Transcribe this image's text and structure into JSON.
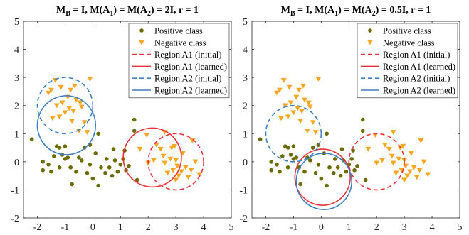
{
  "chart_data": [
    {
      "type": "scatter",
      "title": "M_B = I, M(A_1) = M(A_2) = 2I, r = 1",
      "title_parts": {
        "mb": "M",
        "mb_sub": "B",
        "eq1": " = I, M(A",
        "a1_sub": "1",
        "eq2": ") = M(A",
        "a2_sub": "2",
        "eq3": ") = 2I, r = 1"
      },
      "xlim": [
        -2.5,
        5
      ],
      "ylim": [
        -2,
        5
      ],
      "xticks": [
        "-2",
        "-1",
        "0",
        "1",
        "2",
        "3",
        "4",
        "5"
      ],
      "yticks": [
        "-2",
        "-1",
        "0",
        "1",
        "2",
        "3",
        "4",
        "5"
      ],
      "grid": false,
      "legend_position": "top-right",
      "legend": [
        "Positive class",
        "Negative class",
        "Region A1 (initial)",
        "Region A1 (learned)",
        "Region A2 (initial)",
        "Region A2 (learned)"
      ],
      "series": [
        {
          "name": "Positive class",
          "marker": "circle",
          "color": "#6b6b00",
          "points": [
            [
              -2.2,
              0.8
            ],
            [
              -1.8,
              0.0
            ],
            [
              -1.8,
              -0.3
            ],
            [
              -1.6,
              -0.1
            ],
            [
              -1.4,
              0.2
            ],
            [
              -1.3,
              0.55
            ],
            [
              -1.2,
              0.5
            ],
            [
              -1.1,
              0.25
            ],
            [
              -1.2,
              -0.2
            ],
            [
              -1.0,
              0.1
            ],
            [
              -0.9,
              0.15
            ],
            [
              -0.8,
              -0.2
            ],
            [
              -0.75,
              -0.8
            ],
            [
              -0.5,
              0.15
            ],
            [
              -0.4,
              0.05
            ],
            [
              -0.2,
              -0.4
            ],
            [
              -0.1,
              0.6
            ],
            [
              0.0,
              -0.6
            ],
            [
              0.2,
              -0.85
            ],
            [
              0.3,
              -0.2
            ],
            [
              0.5,
              0.1
            ],
            [
              0.6,
              -0.2
            ],
            [
              0.7,
              -0.5
            ],
            [
              0.75,
              0.45
            ],
            [
              0.8,
              0.05
            ],
            [
              0.9,
              -0.35
            ],
            [
              1.0,
              -0.1
            ],
            [
              1.1,
              0.1
            ],
            [
              1.15,
              0.4
            ],
            [
              1.2,
              -0.3
            ],
            [
              1.5,
              1.1
            ],
            [
              1.5,
              1.5
            ],
            [
              1.6,
              -0.65
            ],
            [
              0.2,
              1.0
            ],
            [
              -0.3,
              0.5
            ],
            [
              -1.5,
              -0.35
            ],
            [
              -0.6,
              -0.35
            ],
            [
              -0.1,
              -0.1
            ],
            [
              0.45,
              -0.4
            ],
            [
              1.3,
              -0.15
            ],
            [
              -1.0,
              0.55
            ],
            [
              0.1,
              0.3
            ]
          ]
        },
        {
          "name": "Negative class",
          "marker": "triangle-down",
          "color": "#f5a623",
          "points": [
            [
              -1.6,
              2.45
            ],
            [
              -1.5,
              2.55
            ],
            [
              -1.35,
              2.9
            ],
            [
              -1.3,
              2.0
            ],
            [
              -1.2,
              1.6
            ],
            [
              -1.1,
              2.1
            ],
            [
              -1.0,
              1.75
            ],
            [
              -0.9,
              2.3
            ],
            [
              -0.85,
              1.9
            ],
            [
              -0.75,
              1.45
            ],
            [
              -0.7,
              1.8
            ],
            [
              -0.65,
              2.7
            ],
            [
              -0.6,
              2.2
            ],
            [
              -0.5,
              1.1
            ],
            [
              -0.4,
              1.95
            ],
            [
              -0.3,
              1.4
            ],
            [
              -0.1,
              2.95
            ],
            [
              -0.2,
              1.05
            ],
            [
              -0.45,
              2.1
            ],
            [
              -1.15,
              2.65
            ],
            [
              -0.8,
              2.55
            ],
            [
              -1.45,
              1.55
            ],
            [
              1.7,
              0.45
            ],
            [
              2.0,
              -0.05
            ],
            [
              2.3,
              0.6
            ],
            [
              2.45,
              0.45
            ],
            [
              2.55,
              0.2
            ],
            [
              2.6,
              -0.05
            ],
            [
              2.7,
              -0.4
            ],
            [
              2.8,
              0.1
            ],
            [
              2.85,
              0.5
            ],
            [
              2.9,
              -0.3
            ],
            [
              2.95,
              0.55
            ],
            [
              3.0,
              0.05
            ],
            [
              3.05,
              -0.15
            ],
            [
              3.1,
              -0.5
            ],
            [
              3.2,
              -0.35
            ],
            [
              3.25,
              0.3
            ],
            [
              3.35,
              -0.2
            ],
            [
              3.45,
              -0.55
            ],
            [
              3.55,
              -0.3
            ],
            [
              3.7,
              0.0
            ],
            [
              3.85,
              -0.45
            ],
            [
              3.6,
              0.75
            ],
            [
              2.6,
              1.05
            ],
            [
              1.95,
              0.95
            ],
            [
              3.0,
              -0.65
            ],
            [
              2.2,
              0.05
            ]
          ]
        }
      ],
      "circles": [
        {
          "name": "Region A1 (initial)",
          "cx": 3.0,
          "cy": 0.0,
          "r": 1.0,
          "color": "#e8333a",
          "dashed": true
        },
        {
          "name": "Region A1 (learned)",
          "cx": 2.15,
          "cy": 0.15,
          "r": 1.05,
          "color": "#e8333a",
          "dashed": false
        },
        {
          "name": "Region A2 (initial)",
          "cx": -1.0,
          "cy": 2.0,
          "r": 1.0,
          "color": "#3e7fbf",
          "dashed": true
        },
        {
          "name": "Region A2 (learned)",
          "cx": -0.95,
          "cy": 1.3,
          "r": 1.05,
          "color": "#3e7fbf",
          "dashed": false
        }
      ]
    },
    {
      "type": "scatter",
      "title": "M_B = I, M(A_1) = M(A_2) = 0.5I, r = 1",
      "title_parts": {
        "mb": "M",
        "mb_sub": "B",
        "eq1": " = I, M(A",
        "a1_sub": "1",
        "eq2": ") = M(A",
        "a2_sub": "2",
        "eq3": ") = 0.5I, r = 1"
      },
      "xlim": [
        -2.5,
        5
      ],
      "ylim": [
        -2,
        5
      ],
      "xticks": [
        "-2",
        "-1",
        "0",
        "1",
        "2",
        "3",
        "4",
        "5"
      ],
      "yticks": [
        "-2",
        "-1",
        "0",
        "1",
        "2",
        "3",
        "4",
        "5"
      ],
      "grid": false,
      "legend_position": "top-right",
      "legend": [
        "Positive class",
        "Negative class",
        "Region A1 (initial)",
        "Region A1 (learned)",
        "Region A2 (initial)",
        "Region A2 (learned)"
      ],
      "series": [
        {
          "name": "Positive class",
          "marker": "circle",
          "color": "#6b6b00",
          "points": [
            [
              -2.2,
              0.8
            ],
            [
              -1.8,
              0.0
            ],
            [
              -1.8,
              -0.3
            ],
            [
              -1.6,
              -0.1
            ],
            [
              -1.4,
              0.2
            ],
            [
              -1.3,
              0.55
            ],
            [
              -1.2,
              0.5
            ],
            [
              -1.1,
              0.25
            ],
            [
              -1.2,
              -0.2
            ],
            [
              -1.0,
              0.1
            ],
            [
              -0.9,
              0.15
            ],
            [
              -0.8,
              -0.2
            ],
            [
              -0.75,
              -0.8
            ],
            [
              -0.5,
              0.15
            ],
            [
              -0.4,
              0.05
            ],
            [
              -0.2,
              -0.4
            ],
            [
              -0.1,
              0.6
            ],
            [
              0.0,
              -0.6
            ],
            [
              0.2,
              -0.85
            ],
            [
              0.3,
              -0.2
            ],
            [
              0.5,
              0.1
            ],
            [
              0.6,
              -0.2
            ],
            [
              0.7,
              -0.5
            ],
            [
              0.75,
              0.45
            ],
            [
              0.8,
              0.05
            ],
            [
              0.9,
              -0.35
            ],
            [
              1.0,
              -0.1
            ],
            [
              1.1,
              0.1
            ],
            [
              1.15,
              0.4
            ],
            [
              1.2,
              -0.3
            ],
            [
              1.5,
              1.1
            ],
            [
              1.5,
              1.5
            ],
            [
              1.6,
              -0.65
            ],
            [
              0.2,
              1.0
            ],
            [
              -0.3,
              0.5
            ],
            [
              -1.5,
              -0.35
            ],
            [
              -0.6,
              -0.35
            ],
            [
              -0.1,
              -0.1
            ],
            [
              0.45,
              -0.4
            ],
            [
              1.3,
              -0.15
            ],
            [
              -1.0,
              0.55
            ],
            [
              0.1,
              0.3
            ]
          ]
        },
        {
          "name": "Negative class",
          "marker": "triangle-down",
          "color": "#f5a623",
          "points": [
            [
              -1.6,
              2.45
            ],
            [
              -1.5,
              2.55
            ],
            [
              -1.35,
              2.9
            ],
            [
              -1.3,
              2.0
            ],
            [
              -1.2,
              1.6
            ],
            [
              -1.1,
              2.1
            ],
            [
              -1.0,
              1.75
            ],
            [
              -0.9,
              2.3
            ],
            [
              -0.85,
              1.9
            ],
            [
              -0.75,
              1.45
            ],
            [
              -0.7,
              1.8
            ],
            [
              -0.65,
              2.7
            ],
            [
              -0.6,
              2.2
            ],
            [
              -0.5,
              1.1
            ],
            [
              -0.4,
              1.95
            ],
            [
              -0.3,
              1.4
            ],
            [
              -0.1,
              2.95
            ],
            [
              -0.2,
              1.05
            ],
            [
              -0.45,
              2.1
            ],
            [
              -1.15,
              2.65
            ],
            [
              -0.8,
              2.55
            ],
            [
              -1.45,
              1.55
            ],
            [
              1.7,
              0.45
            ],
            [
              2.0,
              -0.05
            ],
            [
              2.3,
              0.6
            ],
            [
              2.45,
              0.45
            ],
            [
              2.55,
              0.2
            ],
            [
              2.6,
              -0.05
            ],
            [
              2.7,
              -0.4
            ],
            [
              2.8,
              0.1
            ],
            [
              2.85,
              0.5
            ],
            [
              2.9,
              -0.3
            ],
            [
              2.95,
              0.55
            ],
            [
              3.0,
              0.05
            ],
            [
              3.05,
              -0.15
            ],
            [
              3.1,
              -0.5
            ],
            [
              3.2,
              -0.35
            ],
            [
              3.25,
              0.3
            ],
            [
              3.35,
              -0.2
            ],
            [
              3.45,
              -0.55
            ],
            [
              3.55,
              -0.3
            ],
            [
              3.7,
              0.0
            ],
            [
              3.85,
              -0.45
            ],
            [
              3.6,
              0.75
            ],
            [
              2.6,
              1.05
            ],
            [
              1.95,
              0.95
            ],
            [
              3.0,
              -0.65
            ],
            [
              2.2,
              0.05
            ]
          ]
        }
      ],
      "circles": [
        {
          "name": "Region A1 (initial)",
          "cx": 2.0,
          "cy": 0.0,
          "r": 1.0,
          "color": "#e8333a",
          "dashed": true
        },
        {
          "name": "Region A1 (learned)",
          "cx": 0.05,
          "cy": -0.55,
          "r": 1.0,
          "color": "#e8333a",
          "dashed": false
        },
        {
          "name": "Region A2 (initial)",
          "cx": -1.0,
          "cy": 1.0,
          "r": 1.0,
          "color": "#3e7fbf",
          "dashed": true
        },
        {
          "name": "Region A2 (learned)",
          "cx": 0.1,
          "cy": -0.7,
          "r": 1.0,
          "color": "#3e7fbf",
          "dashed": false
        }
      ]
    }
  ]
}
